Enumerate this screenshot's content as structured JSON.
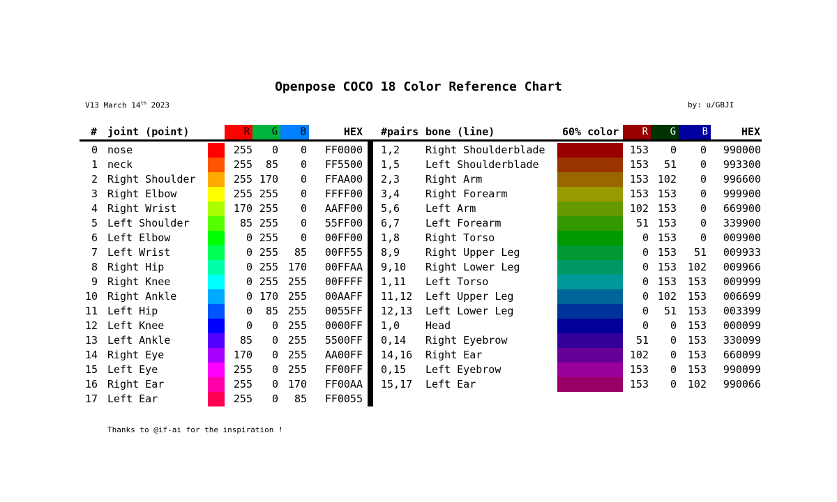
{
  "title": "Openpose COCO 18 Color Reference Chart",
  "version": "V13",
  "date_text": "March 14",
  "date_suffix": "th",
  "date_year": "2023",
  "author": "by: u/GBJI",
  "thanks": "Thanks to @if-ai for the inspiration !",
  "header": {
    "num": "#",
    "joint": "joint (point)",
    "r": "R",
    "g": "G",
    "b": "B",
    "hex": "HEX",
    "pairs": "#pairs",
    "bone": "bone (line)",
    "color60": "60% color",
    "r2": "R",
    "g2": "G",
    "b2": "B",
    "hex2": "HEX"
  },
  "header_colors": {
    "r": "#ff0000",
    "g": "#00b43c",
    "b": "#0080ff",
    "r2": "#990000",
    "g2": "#003300",
    "b2": "#0000a0"
  },
  "joints": [
    {
      "num": "0",
      "name": "nose",
      "r": "255",
      "g": "0",
      "b": "0",
      "hex": "FF0000",
      "color": "#FF0000"
    },
    {
      "num": "1",
      "name": "neck",
      "r": "255",
      "g": "85",
      "b": "0",
      "hex": "FF5500",
      "color": "#FF5500"
    },
    {
      "num": "2",
      "name": "Right Shoulder",
      "r": "255",
      "g": "170",
      "b": "0",
      "hex": "FFAA00",
      "color": "#FFAA00"
    },
    {
      "num": "3",
      "name": "Right Elbow",
      "r": "255",
      "g": "255",
      "b": "0",
      "hex": "FFFF00",
      "color": "#FFFF00"
    },
    {
      "num": "4",
      "name": "Right Wrist",
      "r": "170",
      "g": "255",
      "b": "0",
      "hex": "AAFF00",
      "color": "#AAFF00"
    },
    {
      "num": "5",
      "name": "Left Shoulder",
      "r": "85",
      "g": "255",
      "b": "0",
      "hex": "55FF00",
      "color": "#55FF00"
    },
    {
      "num": "6",
      "name": "Left Elbow",
      "r": "0",
      "g": "255",
      "b": "0",
      "hex": "00FF00",
      "color": "#00FF00"
    },
    {
      "num": "7",
      "name": "Left Wrist",
      "r": "0",
      "g": "255",
      "b": "85",
      "hex": "00FF55",
      "color": "#00FF55"
    },
    {
      "num": "8",
      "name": "Right Hip",
      "r": "0",
      "g": "255",
      "b": "170",
      "hex": "00FFAA",
      "color": "#00FFAA"
    },
    {
      "num": "9",
      "name": "Right Knee",
      "r": "0",
      "g": "255",
      "b": "255",
      "hex": "00FFFF",
      "color": "#00FFFF"
    },
    {
      "num": "10",
      "name": "Right Ankle",
      "r": "0",
      "g": "170",
      "b": "255",
      "hex": "00AAFF",
      "color": "#00AAFF"
    },
    {
      "num": "11",
      "name": "Left Hip",
      "r": "0",
      "g": "85",
      "b": "255",
      "hex": "0055FF",
      "color": "#0055FF"
    },
    {
      "num": "12",
      "name": "Left Knee",
      "r": "0",
      "g": "0",
      "b": "255",
      "hex": "0000FF",
      "color": "#0000FF"
    },
    {
      "num": "13",
      "name": "Left Ankle",
      "r": "85",
      "g": "0",
      "b": "255",
      "hex": "5500FF",
      "color": "#5500FF"
    },
    {
      "num": "14",
      "name": "Right Eye",
      "r": "170",
      "g": "0",
      "b": "255",
      "hex": "AA00FF",
      "color": "#AA00FF"
    },
    {
      "num": "15",
      "name": "Left Eye",
      "r": "255",
      "g": "0",
      "b": "255",
      "hex": "FF00FF",
      "color": "#FF00FF"
    },
    {
      "num": "16",
      "name": "Right Ear",
      "r": "255",
      "g": "0",
      "b": "170",
      "hex": "FF00AA",
      "color": "#FF00AA"
    },
    {
      "num": "17",
      "name": "Left Ear",
      "r": "255",
      "g": "0",
      "b": "85",
      "hex": "FF0055",
      "color": "#FF0055"
    }
  ],
  "bones": [
    {
      "pair": "1,2",
      "name": "Right Shoulderblade",
      "r": "153",
      "g": "0",
      "b": "0",
      "hex": "990000",
      "color": "#990000"
    },
    {
      "pair": "1,5",
      "name": "Left Shoulderblade",
      "r": "153",
      "g": "51",
      "b": "0",
      "hex": "993300",
      "color": "#993300"
    },
    {
      "pair": "2,3",
      "name": "Right Arm",
      "r": "153",
      "g": "102",
      "b": "0",
      "hex": "996600",
      "color": "#996600"
    },
    {
      "pair": "3,4",
      "name": "Right Forearm",
      "r": "153",
      "g": "153",
      "b": "0",
      "hex": "999900",
      "color": "#999900"
    },
    {
      "pair": "5,6",
      "name": "Left Arm",
      "r": "102",
      "g": "153",
      "b": "0",
      "hex": "669900",
      "color": "#669900"
    },
    {
      "pair": "6,7",
      "name": "Left Forearm",
      "r": "51",
      "g": "153",
      "b": "0",
      "hex": "339900",
      "color": "#339900"
    },
    {
      "pair": "1,8",
      "name": "Right Torso",
      "r": "0",
      "g": "153",
      "b": "0",
      "hex": "009900",
      "color": "#009900"
    },
    {
      "pair": "8,9",
      "name": "Right Upper Leg",
      "r": "0",
      "g": "153",
      "b": "51",
      "hex": "009933",
      "color": "#009933"
    },
    {
      "pair": "9,10",
      "name": "Right Lower Leg",
      "r": "0",
      "g": "153",
      "b": "102",
      "hex": "009966",
      "color": "#009966"
    },
    {
      "pair": "1,11",
      "name": "Left Torso",
      "r": "0",
      "g": "153",
      "b": "153",
      "hex": "009999",
      "color": "#009999"
    },
    {
      "pair": "11,12",
      "name": "Left Upper Leg",
      "r": "0",
      "g": "102",
      "b": "153",
      "hex": "006699",
      "color": "#006699"
    },
    {
      "pair": "12,13",
      "name": "Left Lower Leg",
      "r": "0",
      "g": "51",
      "b": "153",
      "hex": "003399",
      "color": "#003399"
    },
    {
      "pair": "1,0",
      "name": "Head",
      "r": "0",
      "g": "0",
      "b": "153",
      "hex": "000099",
      "color": "#000099"
    },
    {
      "pair": "0,14",
      "name": "Right Eyebrow",
      "r": "51",
      "g": "0",
      "b": "153",
      "hex": "330099",
      "color": "#330099"
    },
    {
      "pair": "14,16",
      "name": "Right Ear",
      "r": "102",
      "g": "0",
      "b": "153",
      "hex": "660099",
      "color": "#660099"
    },
    {
      "pair": "0,15",
      "name": "Left Eyebrow",
      "r": "153",
      "g": "0",
      "b": "153",
      "hex": "990099",
      "color": "#990099"
    },
    {
      "pair": "15,17",
      "name": "Left Ear",
      "r": "153",
      "g": "0",
      "b": "102",
      "hex": "990066",
      "color": "#990066"
    }
  ]
}
